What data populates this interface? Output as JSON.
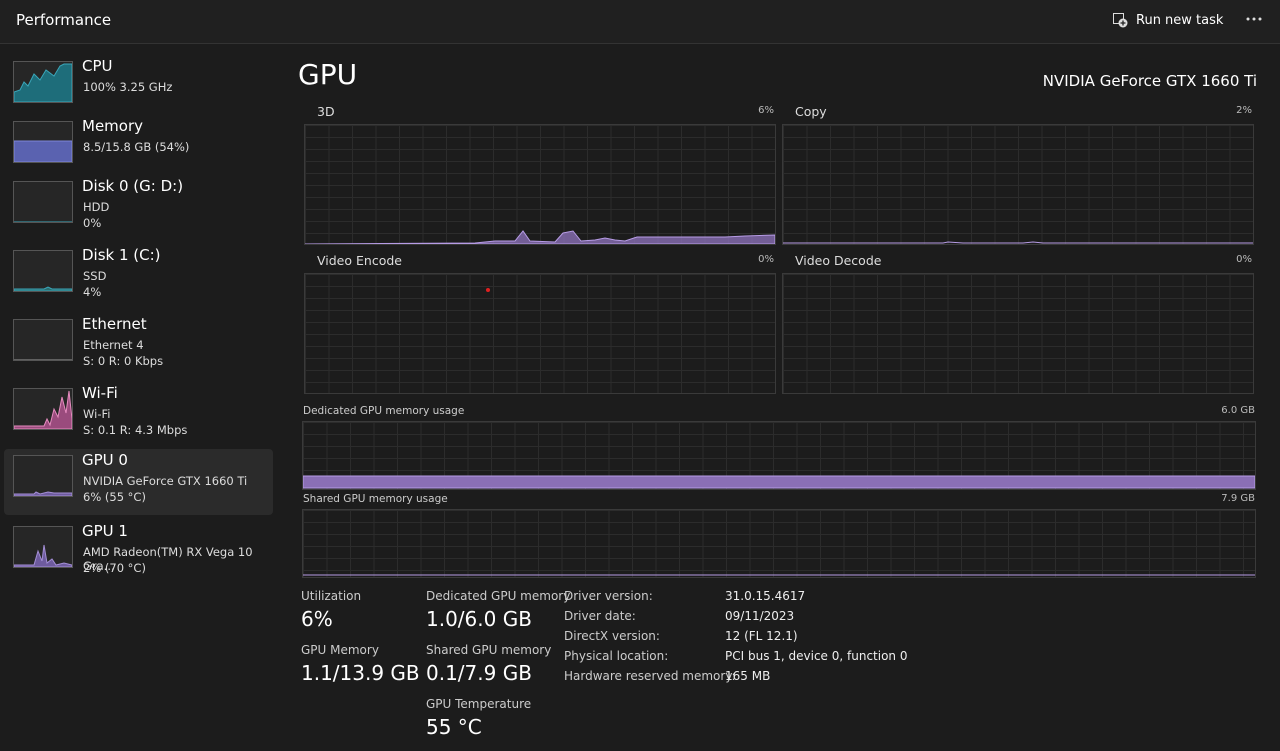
{
  "header": {
    "title": "Performance",
    "run_new_task": "Run new task"
  },
  "sidebar": [
    {
      "name": "CPU",
      "lines": [
        "100%  3.25 GHz"
      ]
    },
    {
      "name": "Memory",
      "lines": [
        "8.5/15.8 GB (54%)"
      ]
    },
    {
      "name": "Disk 0 (G: D:)",
      "lines": [
        "HDD",
        "0%"
      ]
    },
    {
      "name": "Disk 1 (C:)",
      "lines": [
        "SSD",
        "4%"
      ]
    },
    {
      "name": "Ethernet",
      "lines": [
        "Ethernet 4",
        "S: 0 R: 0 Kbps"
      ]
    },
    {
      "name": "Wi-Fi",
      "lines": [
        "Wi-Fi",
        "S: 0.1 R: 4.3 Mbps"
      ]
    },
    {
      "name": "GPU 0",
      "lines": [
        "NVIDIA GeForce GTX 1660 Ti",
        "6% (55 °C)"
      ]
    },
    {
      "name": "GPU 1",
      "lines": [
        "AMD Radeon(TM) RX Vega 10 Gra...",
        "2% (70 °C)"
      ]
    }
  ],
  "main": {
    "title": "GPU",
    "device": "NVIDIA GeForce GTX 1660 Ti",
    "graphs": [
      {
        "label": "3D",
        "max": "6%"
      },
      {
        "label": "Copy",
        "max": "2%"
      },
      {
        "label": "Video Encode",
        "max": "0%"
      },
      {
        "label": "Video Decode",
        "max": "0%"
      }
    ],
    "memory_graphs": [
      {
        "label": "Dedicated GPU memory usage",
        "max": "6.0 GB"
      },
      {
        "label": "Shared GPU memory usage",
        "max": "7.9 GB"
      }
    ],
    "stats": [
      {
        "label": "Utilization",
        "value": "6%"
      },
      {
        "label": "GPU Memory",
        "value": "1.1/13.9 GB"
      },
      {
        "label": "Dedicated GPU memory",
        "value": "1.0/6.0 GB"
      },
      {
        "label": "Shared GPU memory",
        "value": "0.1/7.9 GB"
      },
      {
        "label": "GPU Temperature",
        "value": "55 °C"
      }
    ],
    "details": [
      [
        "Driver version:",
        "31.0.15.4617"
      ],
      [
        "Driver date:",
        "09/11/2023"
      ],
      [
        "DirectX version:",
        "12 (FL 12.1)"
      ],
      [
        "Physical location:",
        "PCI bus 1, device 0, function 0"
      ],
      [
        "Hardware reserved memory:",
        "165 MB"
      ]
    ]
  }
}
